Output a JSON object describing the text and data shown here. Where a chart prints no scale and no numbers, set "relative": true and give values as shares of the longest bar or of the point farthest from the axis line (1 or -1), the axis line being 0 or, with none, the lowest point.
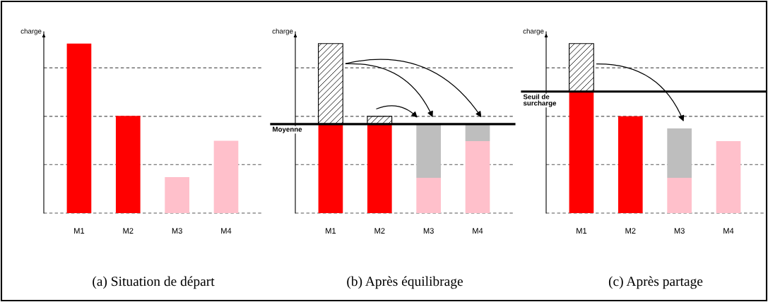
{
  "chart_data": [
    {
      "type": "bar",
      "relative": true,
      "ylabel": "charge",
      "xlabel": "(a) Situation de départ",
      "categories": [
        "M1",
        "M2",
        "M3",
        "M4"
      ],
      "values": [
        1,
        0.573,
        0.212,
        0.427
      ],
      "colors": [
        "#ff0000",
        "#ff0000",
        "#ffc0cb",
        "#ffc0cb"
      ],
      "ref_lines": [
        {
          "axis": "y",
          "value": 0,
          "color": "#555555",
          "line_style": "dashed"
        },
        {
          "axis": "y",
          "value": 0.286,
          "color": "#555555",
          "line_style": "dashed"
        },
        {
          "axis": "y",
          "value": 0.571,
          "color": "#555555",
          "line_style": "dashed"
        },
        {
          "axis": "y",
          "value": 0.857,
          "color": "#555555",
          "line_style": "dashed"
        }
      ]
    },
    {
      "type": "bar",
      "relative": true,
      "stacked": true,
      "ylabel": "charge",
      "xlabel": "(b) Après équilibrage",
      "categories": [
        "M1",
        "M2",
        "M3",
        "M4"
      ],
      "series": [
        {
          "colors": [
            "#ff0000",
            "#ff0000",
            "#ffc0cb",
            "#ffc0cb"
          ],
          "values": [
            0.525,
            0.525,
            0.208,
            0.425
          ]
        },
        {
          "color": "#000000",
          "values": [
            0.475,
            0.046,
            null,
            null
          ]
        },
        {
          "color": "#bebebe",
          "values": [
            null,
            null,
            0.317,
            0.1
          ]
        }
      ],
      "ref_lines": [
        {
          "axis": "y",
          "value": 0,
          "color": "#555555",
          "line_style": "dashed"
        },
        {
          "axis": "y",
          "value": 0.286,
          "color": "#555555",
          "line_style": "dashed"
        },
        {
          "axis": "y",
          "value": 0.571,
          "color": "#555555",
          "line_style": "dashed"
        },
        {
          "axis": "y",
          "value": 0.857,
          "color": "#555555",
          "line_style": "dashed"
        },
        {
          "axis": "y",
          "value": 0.525,
          "label": "Moyenne",
          "color": "#000000",
          "line_style": "solid"
        }
      ]
    },
    {
      "type": "bar",
      "relative": true,
      "stacked": true,
      "ylabel": "charge",
      "xlabel": "(c) Après partage",
      "categories": [
        "M1",
        "M2",
        "M3",
        "M4"
      ],
      "series": [
        {
          "colors": [
            "#ff0000",
            "#ff0000",
            "#ffc0cb",
            "#ffc0cb"
          ],
          "values": [
            0.717,
            0.571,
            0.208,
            0.425
          ]
        },
        {
          "color": "#000000",
          "values": [
            0.283,
            null,
            null,
            null
          ]
        },
        {
          "color": "#bebebe",
          "values": [
            null,
            null,
            0.292,
            null
          ]
        }
      ],
      "ref_lines": [
        {
          "axis": "y",
          "value": 0,
          "color": "#555555",
          "line_style": "dashed"
        },
        {
          "axis": "y",
          "value": 0.286,
          "color": "#555555",
          "line_style": "dashed"
        },
        {
          "axis": "y",
          "value": 0.571,
          "color": "#555555",
          "line_style": "dashed"
        },
        {
          "axis": "y",
          "value": 0.857,
          "color": "#555555",
          "line_style": "dashed"
        },
        {
          "axis": "y",
          "value": 0.717,
          "label": "Seuil de\nsurcharge",
          "color": "#000000",
          "line_style": "solid"
        }
      ]
    }
  ]
}
